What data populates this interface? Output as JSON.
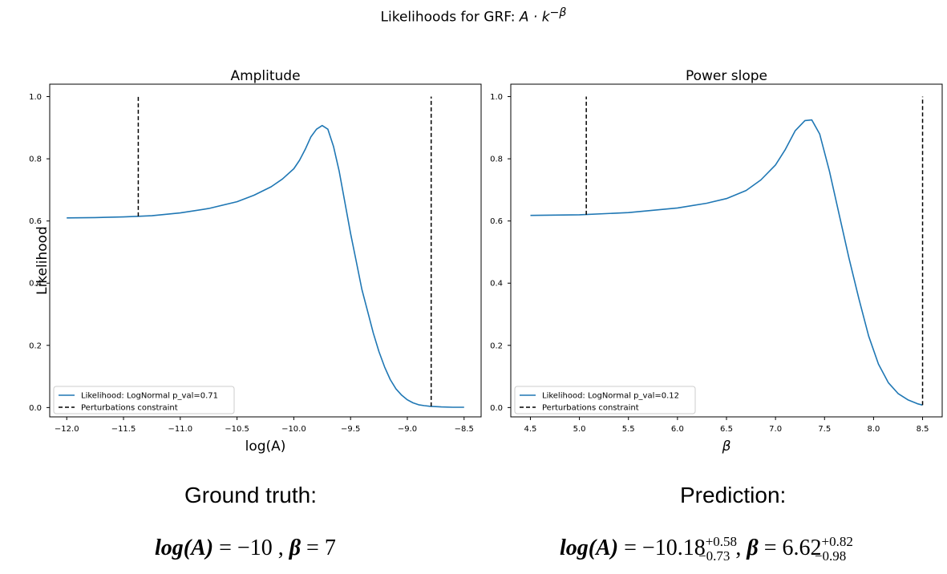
{
  "figure": {
    "suptitle_prefix": "Likelihoods for GRF: ",
    "suptitle_formula": "A · k",
    "suptitle_exponent": "−β"
  },
  "chart_data": [
    {
      "type": "line",
      "title": "Amplitude",
      "xlabel": "log(A)",
      "ylabel": "Likelihood",
      "xlim": [
        -12.15,
        -8.35
      ],
      "ylim": [
        -0.03,
        1.04
      ],
      "xticks": [
        -12.0,
        -11.5,
        -11.0,
        -10.5,
        -10.0,
        -9.5,
        -9.0,
        -8.5
      ],
      "xtick_labels": [
        "−12.0",
        "−11.5",
        "−11.0",
        "−10.5",
        "−10.0",
        "−9.5",
        "−9.0",
        "−8.5"
      ],
      "yticks": [
        0.0,
        0.2,
        0.4,
        0.6,
        0.8,
        1.0
      ],
      "ytick_labels": [
        "0.0",
        "0.2",
        "0.4",
        "0.6",
        "0.8",
        "1.0"
      ],
      "series": [
        {
          "name": "Likelihood: LogNormal p_val=0.71",
          "color": "#1f77b4",
          "style": "solid",
          "x": [
            -12.0,
            -11.75,
            -11.5,
            -11.37,
            -11.25,
            -11.0,
            -10.75,
            -10.5,
            -10.35,
            -10.2,
            -10.1,
            -10.0,
            -9.95,
            -9.9,
            -9.85,
            -9.8,
            -9.75,
            -9.7,
            -9.65,
            -9.6,
            -9.55,
            -9.5,
            -9.45,
            -9.4,
            -9.35,
            -9.3,
            -9.25,
            -9.2,
            -9.15,
            -9.1,
            -9.05,
            -9.0,
            -8.95,
            -8.9,
            -8.85,
            -8.8,
            -8.75,
            -8.7,
            -8.6,
            -8.5
          ],
          "y": [
            0.61,
            0.611,
            0.613,
            0.615,
            0.617,
            0.626,
            0.64,
            0.662,
            0.683,
            0.71,
            0.735,
            0.768,
            0.795,
            0.83,
            0.87,
            0.895,
            0.907,
            0.895,
            0.84,
            0.76,
            0.66,
            0.56,
            0.47,
            0.38,
            0.31,
            0.24,
            0.18,
            0.13,
            0.09,
            0.06,
            0.04,
            0.025,
            0.015,
            0.009,
            0.006,
            0.004,
            0.003,
            0.002,
            0.001,
            0.001
          ]
        },
        {
          "name": "Perturbations constraint",
          "color": "#000000",
          "style": "dashed",
          "vlines": [
            {
              "x": -11.37,
              "ymin": 0.615,
              "ymax": 1.0
            },
            {
              "x": -8.79,
              "ymin": 0.004,
              "ymax": 1.0
            }
          ]
        }
      ],
      "legend": "lower-left"
    },
    {
      "type": "line",
      "title": "Power slope",
      "xlabel": "β",
      "ylabel": "",
      "xlim": [
        4.3,
        8.7
      ],
      "ylim": [
        -0.03,
        1.04
      ],
      "xticks": [
        4.5,
        5.0,
        5.5,
        6.0,
        6.5,
        7.0,
        7.5,
        8.0,
        8.5
      ],
      "xtick_labels": [
        "4.5",
        "5.0",
        "5.5",
        "6.0",
        "6.5",
        "7.0",
        "7.5",
        "8.0",
        "8.5"
      ],
      "yticks": [
        0.0,
        0.2,
        0.4,
        0.6,
        0.8,
        1.0
      ],
      "ytick_labels": [
        "0.0",
        "0.2",
        "0.4",
        "0.6",
        "0.8",
        "1.0"
      ],
      "series": [
        {
          "name": "Likelihood: LogNormal p_val=0.12",
          "color": "#1f77b4",
          "style": "solid",
          "x": [
            4.5,
            5.0,
            5.5,
            6.0,
            6.3,
            6.5,
            6.7,
            6.85,
            7.0,
            7.1,
            7.2,
            7.3,
            7.37,
            7.45,
            7.55,
            7.65,
            7.75,
            7.85,
            7.95,
            8.05,
            8.15,
            8.25,
            8.35,
            8.45,
            8.5
          ],
          "y": [
            0.618,
            0.62,
            0.627,
            0.642,
            0.657,
            0.672,
            0.698,
            0.732,
            0.78,
            0.83,
            0.89,
            0.923,
            0.925,
            0.88,
            0.76,
            0.62,
            0.48,
            0.35,
            0.23,
            0.14,
            0.08,
            0.045,
            0.025,
            0.012,
            0.008
          ]
        },
        {
          "name": "Perturbations constraint",
          "color": "#000000",
          "style": "dashed",
          "vlines": [
            {
              "x": 5.07,
              "ymin": 0.62,
              "ymax": 1.0
            },
            {
              "x": 8.5,
              "ymin": 0.008,
              "ymax": 1.0
            }
          ]
        }
      ],
      "legend": "lower-left"
    }
  ],
  "captions": {
    "ground_truth_label": "Ground truth:",
    "prediction_label": "Prediction:",
    "gt_loga_lhs": "log(A)",
    "gt_loga_rhs": " = −10 , ",
    "gt_beta_lhs": "β",
    "gt_beta_rhs": " = 7",
    "pred_loga_lhs": "log(A)",
    "pred_loga_rhs": " = −10.18",
    "pred_loga_sup": "+0.58",
    "pred_loga_sub": "−0.73",
    "pred_sep": " , ",
    "pred_beta_lhs": "β",
    "pred_beta_rhs": " = 6.62",
    "pred_beta_sup": "+0.82",
    "pred_beta_sub": "−0.98"
  }
}
